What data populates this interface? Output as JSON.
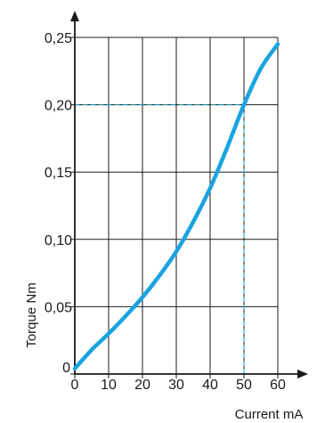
{
  "chart_data": {
    "type": "line",
    "xlabel": "Current  mA",
    "ylabel": "Torque Nm",
    "xlim": [
      0,
      60
    ],
    "ylim": [
      0,
      0.25
    ],
    "x_ticks": [
      0,
      10,
      20,
      30,
      40,
      50,
      60
    ],
    "y_ticks": [
      0,
      0.05,
      0.1,
      0.15,
      0.2,
      0.25
    ],
    "x_tick_labels": [
      "0",
      "10",
      "20",
      "30",
      "40",
      "50",
      "60"
    ],
    "y_tick_labels": [
      "0",
      "0,05",
      "0,10",
      "0,15",
      "0,20",
      "0,25"
    ],
    "grid": true,
    "series": [
      {
        "color": "#1aa3e0",
        "x": [
          0,
          5,
          10,
          15,
          20,
          25,
          30,
          35,
          40,
          45,
          50,
          55,
          60
        ],
        "y": [
          0.004,
          0.018,
          0.03,
          0.043,
          0.057,
          0.073,
          0.091,
          0.113,
          0.138,
          0.168,
          0.2,
          0.227,
          0.245
        ]
      }
    ],
    "reference_lines": [
      {
        "x": 50,
        "y": 0.2,
        "color": "#1aa3e0",
        "style": "dashed"
      }
    ]
  }
}
